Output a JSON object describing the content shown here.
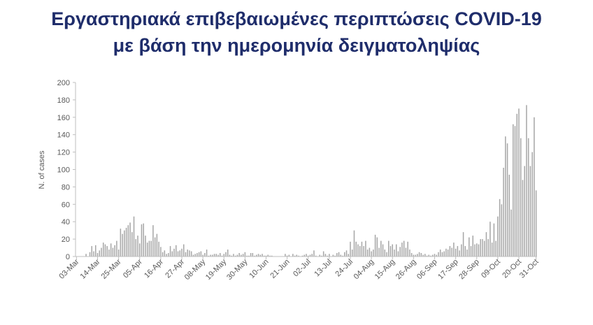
{
  "title_line1": "Εργαστηριακά επιβεβαιωμένες περιπτώσεις COVID-19",
  "title_line2": "με βάση την ημερομηνία δειγματοληψίας",
  "colors": {
    "title": "#1f2d6b",
    "bar": "#a6a6a6",
    "bar_edge": "#7f7f7f",
    "axis": "#bfbfbf",
    "text": "#595959"
  },
  "chart_data": {
    "type": "bar",
    "title": "Εργαστηριακά επιβεβαιωμένες περιπτώσεις COVID-19 με βάση την ημερομηνία δειγματοληψίας",
    "xlabel": "",
    "ylabel": "N. of cases",
    "ylim": [
      0,
      200
    ],
    "yticks": [
      0,
      20,
      40,
      60,
      80,
      100,
      120,
      140,
      160,
      180,
      200
    ],
    "grid": false,
    "x_start": "03-Mar",
    "x_end": "31-Oct",
    "xtick_labels": [
      "03-Mar",
      "14-Mar",
      "25-Mar",
      "05-Apr",
      "16-Apr",
      "27-Apr",
      "08-May",
      "19-May",
      "30-May",
      "10-Jun",
      "21-Jun",
      "02-Jul",
      "13-Jul",
      "24-Jul",
      "04-Aug",
      "15-Aug",
      "26-Aug",
      "06-Sep",
      "17-Sep",
      "28-Sep",
      "09-Oct",
      "20-Oct",
      "31-Oct"
    ],
    "values": [
      0,
      0,
      0,
      0,
      0,
      3,
      0,
      5,
      12,
      6,
      13,
      4,
      7,
      10,
      16,
      14,
      12,
      8,
      15,
      10,
      13,
      18,
      8,
      32,
      26,
      30,
      33,
      36,
      39,
      28,
      46,
      20,
      24,
      15,
      37,
      38,
      24,
      16,
      18,
      18,
      36,
      22,
      26,
      17,
      11,
      5,
      7,
      3,
      4,
      12,
      6,
      9,
      13,
      6,
      7,
      9,
      14,
      5,
      8,
      7,
      6,
      2,
      3,
      4,
      5,
      6,
      2,
      4,
      8,
      1,
      2,
      2,
      3,
      3,
      2,
      4,
      1,
      3,
      5,
      8,
      2,
      1,
      3,
      1,
      2,
      4,
      2,
      3,
      5,
      1,
      1,
      4,
      4,
      1,
      2,
      3,
      2,
      3,
      1,
      1,
      2,
      1,
      1,
      0,
      0,
      0,
      0,
      0,
      0,
      3,
      1,
      2,
      0,
      3,
      1,
      2,
      1,
      0,
      1,
      2,
      3,
      1,
      2,
      3,
      7,
      1,
      0,
      2,
      1,
      6,
      3,
      1,
      3,
      0,
      2,
      1,
      4,
      5,
      2,
      1,
      5,
      7,
      3,
      17,
      8,
      30,
      17,
      14,
      12,
      17,
      12,
      18,
      8,
      10,
      6,
      8,
      25,
      22,
      10,
      18,
      14,
      8,
      5,
      18,
      12,
      14,
      8,
      14,
      6,
      11,
      16,
      18,
      10,
      17,
      8,
      4,
      2,
      2,
      3,
      5,
      4,
      2,
      3,
      1,
      2,
      1,
      2,
      3,
      2,
      5,
      8,
      5,
      6,
      9,
      8,
      12,
      10,
      16,
      9,
      12,
      7,
      14,
      28,
      12,
      8,
      22,
      12,
      24,
      14,
      15,
      14,
      20,
      20,
      18,
      28,
      20,
      40,
      16,
      38,
      18,
      46,
      66,
      60,
      102,
      138,
      130,
      94,
      54,
      152,
      150,
      164,
      170,
      136,
      88,
      104,
      174,
      136,
      104,
      120,
      160,
      76
    ]
  }
}
